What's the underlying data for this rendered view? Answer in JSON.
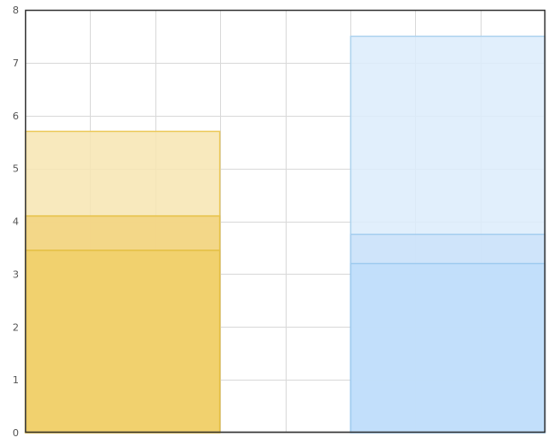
{
  "chart_data": {
    "type": "bar",
    "stacked": false,
    "overlapping": true,
    "title": "",
    "xlabel": "",
    "ylabel": "",
    "ylim": [
      0,
      8
    ],
    "yticks": [
      0,
      1,
      2,
      3,
      4,
      5,
      6,
      7,
      8
    ],
    "x_grid_divisions": 8,
    "grid": true,
    "legend": "none",
    "categories": [
      "",
      ""
    ],
    "series": [
      {
        "values": [
          5.7,
          7.5
        ],
        "colors": [
          "#f7e5b2",
          "#dcecfb"
        ],
        "borders": [
          "#ecc95a",
          "#aed3ee"
        ]
      },
      {
        "values": [
          4.1,
          3.75
        ],
        "colors": [
          "#f2d47f",
          "#cbe2f9"
        ],
        "borders": [
          "#e7c249",
          "#a5cdef"
        ]
      },
      {
        "values": [
          3.45,
          3.2
        ],
        "colors": [
          "#f0d06a",
          "#c0defa"
        ],
        "borders": [
          "#e5bf43",
          "#9fcbef"
        ]
      }
    ],
    "axis_color": "#333333",
    "grid_color": "#d9d9d9"
  }
}
